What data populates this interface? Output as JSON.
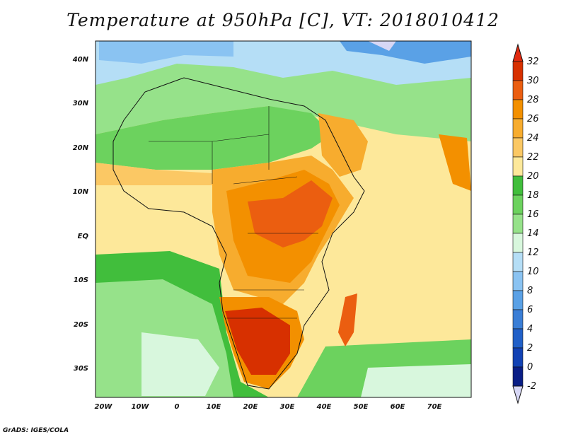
{
  "title": "Temperature at 950hPa [C], VT: 2018010412",
  "credit": "GrADS: IGES/COLA",
  "map": {
    "lat_labels": [
      "40N",
      "30N",
      "20N",
      "10N",
      "EQ",
      "10S",
      "20S",
      "30S"
    ],
    "lon_labels": [
      "20W",
      "10W",
      "0",
      "10E",
      "20E",
      "30E",
      "40E",
      "50E",
      "60E",
      "70E"
    ],
    "lon_range": [
      -22,
      80
    ],
    "lat_range": [
      -36,
      45
    ]
  },
  "colorbar": {
    "labels": [
      "32",
      "30",
      "28",
      "26",
      "24",
      "22",
      "20",
      "18",
      "16",
      "14",
      "12",
      "10",
      "8",
      "6",
      "4",
      "2",
      "0",
      "-2"
    ],
    "colors": [
      "#d73000",
      "#eb5e10",
      "#f39000",
      "#f7ac2e",
      "#fbc864",
      "#fde89a",
      "#41be3c",
      "#6cd25e",
      "#96e28a",
      "#d8f7dd",
      "#b5def6",
      "#8ac3f2",
      "#5aa1e6",
      "#3a7ed6",
      "#2160c8",
      "#1242b4",
      "#0a1e86"
    ],
    "top_arrow_color": "#e12a10",
    "bottom_arrow_color": "#d7d7f5"
  }
}
